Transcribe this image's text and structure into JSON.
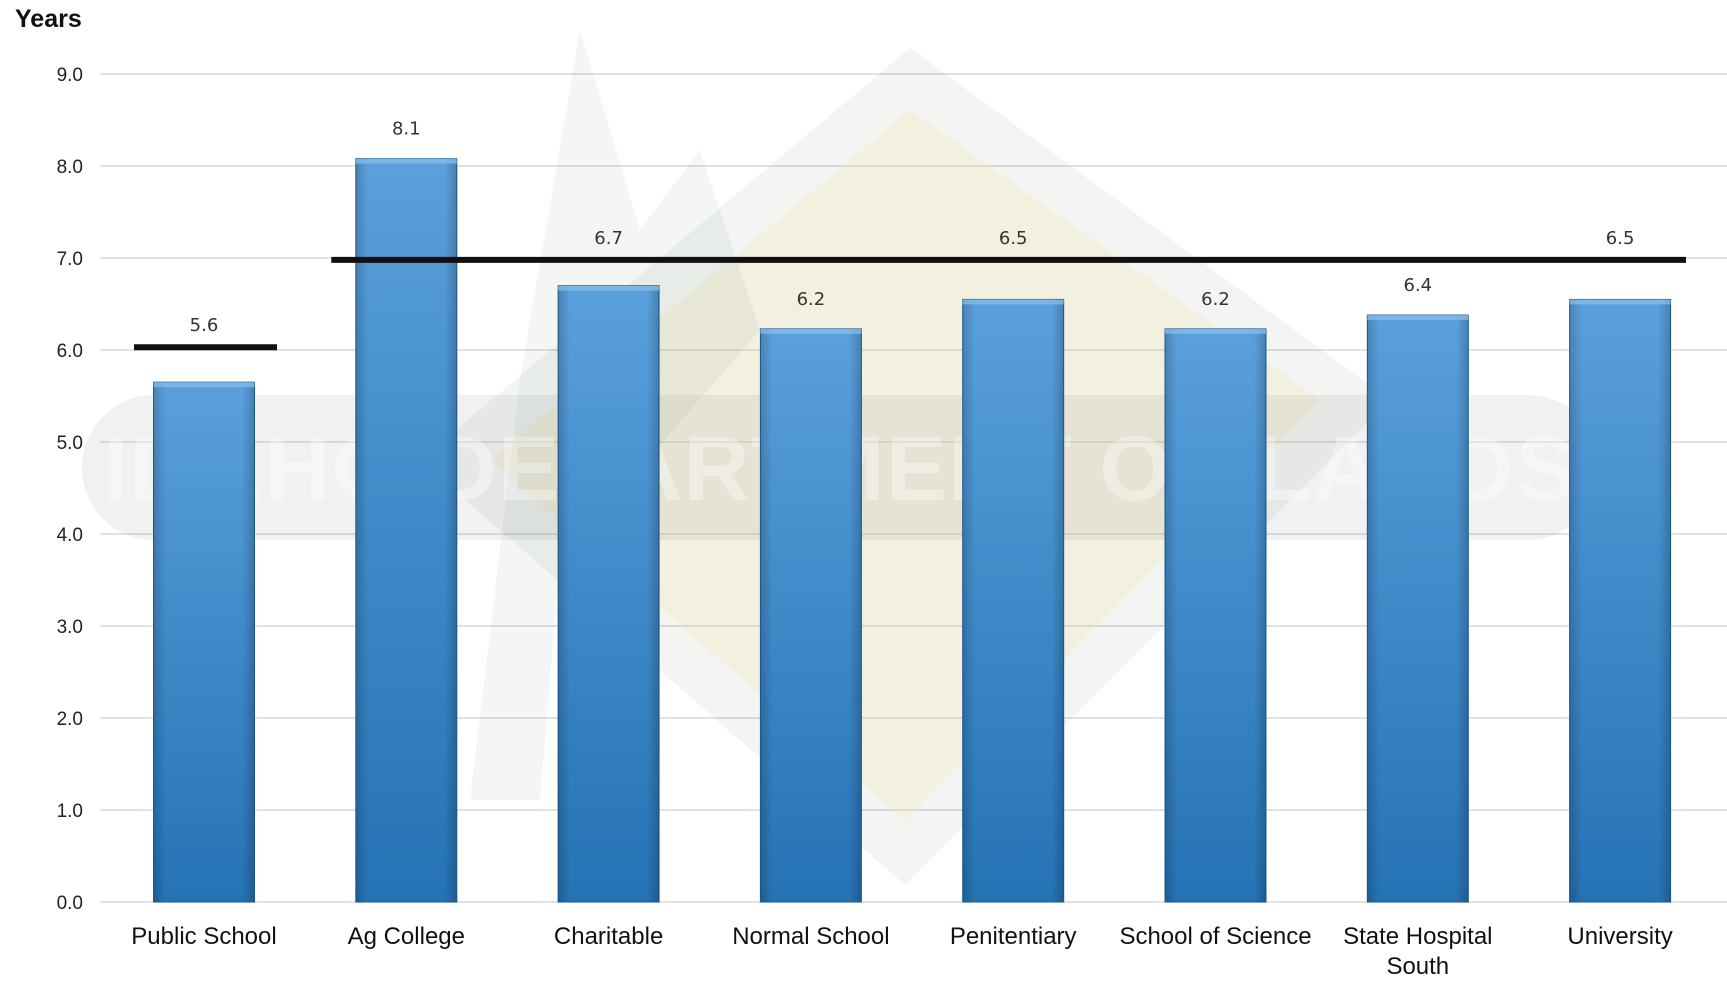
{
  "watermark": {
    "text": "IDAHO DEPARTMENT OF LANDS"
  },
  "chart_data": {
    "type": "bar",
    "ylabel": "Years",
    "ylim": [
      0,
      9
    ],
    "yticks": [
      "0.0",
      "1.0",
      "2.0",
      "3.0",
      "4.0",
      "5.0",
      "6.0",
      "7.0",
      "8.0",
      "9.0"
    ],
    "grid": true,
    "categories": [
      [
        "Public School"
      ],
      [
        "Ag College"
      ],
      [
        "Charitable"
      ],
      [
        "Normal School"
      ],
      [
        "Penitentiary"
      ],
      [
        "School of Science"
      ],
      [
        "State Hospital",
        "South"
      ],
      [
        "University"
      ]
    ],
    "values": [
      5.65,
      8.08,
      6.7,
      6.23,
      6.55,
      6.23,
      6.38,
      6.55
    ],
    "value_labels": [
      "5.6",
      "8.1",
      "6.7",
      "6.2",
      "6.5",
      "6.2",
      "6.4",
      "6.5"
    ],
    "reference_lines": [
      {
        "value": 6.03,
        "from_category": 0,
        "to_category": 0
      },
      {
        "value": 6.98,
        "from_category": 1,
        "to_category": 7
      }
    ],
    "colors": {
      "bar": "#2f7fc1",
      "bar_top": "#5aa0dc",
      "bar_bottom": "#2572b4",
      "reference": "#111111",
      "grid": "#d9d9d9"
    }
  }
}
